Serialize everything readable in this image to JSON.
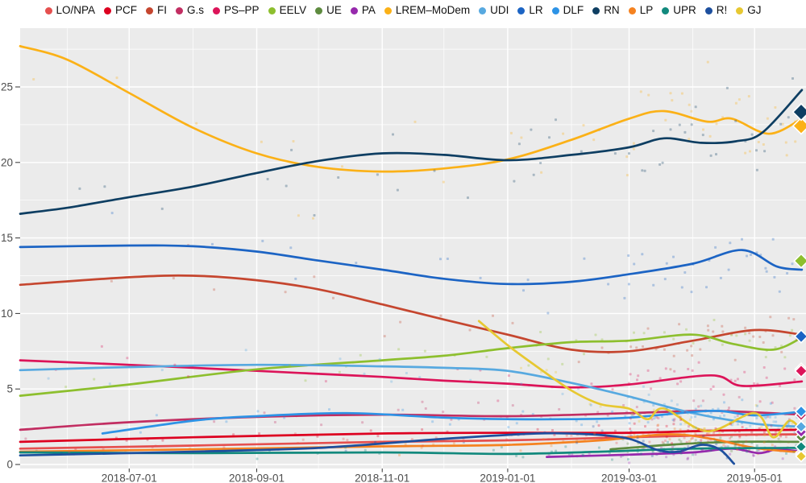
{
  "legend": {
    "items": [
      {
        "label": "LO/NPA",
        "color": "#e5504f"
      },
      {
        "label": "PCF",
        "color": "#dd0020"
      },
      {
        "label": "FI",
        "color": "#c5462f"
      },
      {
        "label": "G.s",
        "color": "#c22e62"
      },
      {
        "label": "PS–PP",
        "color": "#dc1459"
      },
      {
        "label": "EELV",
        "color": "#8dbf2e"
      },
      {
        "label": "UE",
        "color": "#5e8b3f"
      },
      {
        "label": "PA",
        "color": "#9629ac"
      },
      {
        "label": "LREM–MoDem",
        "color": "#fbb117"
      },
      {
        "label": "UDI",
        "color": "#57a9e0"
      },
      {
        "label": "LR",
        "color": "#1c64c4"
      },
      {
        "label": "DLF",
        "color": "#2d93e6"
      },
      {
        "label": "RN",
        "color": "#0e3e62"
      },
      {
        "label": "LP",
        "color": "#f58220"
      },
      {
        "label": "UPR",
        "color": "#12897d"
      },
      {
        "label": "R!",
        "color": "#1d4f9e"
      },
      {
        "label": "GJ",
        "color": "#e7c832"
      }
    ]
  },
  "chart_data": {
    "type": "line",
    "title": "",
    "description_of_marks": "smoothed polling trend lines with translucent poll scatter points; diamonds at right edge mark final values",
    "x_axis": {
      "domain": [
        "2018-05-09",
        "2019-05-26"
      ],
      "tick_labels": [
        "2018-07-01",
        "2018-09-01",
        "2018-11-01",
        "2019-01-01",
        "2019-03-01",
        "2019-05-01"
      ],
      "minor_ticks": [
        "2018-06-01",
        "2018-08-01",
        "2018-10-01",
        "2018-12-01",
        "2019-02-01",
        "2019-04-01"
      ]
    },
    "y_axis": {
      "ticks": [
        0,
        5,
        10,
        15,
        20,
        25
      ],
      "minor_ticks": [
        2.5,
        7.5,
        12.5,
        17.5,
        22.5,
        27.5
      ],
      "lim": [
        0,
        28.9
      ],
      "unit": "%"
    },
    "plot": {
      "bg": "#ebebeb",
      "grid_color": "#ffffff",
      "axis_text_color": "#4d4d4d",
      "tick_color": "#333333"
    },
    "series": [
      {
        "name": "LO/NPA",
        "color": "#e5504f",
        "result": 0.78,
        "points": [
          [
            "2018-05-09",
            1.05
          ],
          [
            "2018-08-01",
            1.25
          ],
          [
            "2018-11-01",
            1.5
          ],
          [
            "2019-01-01",
            1.6
          ],
          [
            "2019-03-01",
            1.8
          ],
          [
            "2019-04-15",
            1.95
          ],
          [
            "2019-05-24",
            2.0
          ]
        ]
      },
      {
        "name": "PCF",
        "color": "#dd0020",
        "result": 2.49,
        "points": [
          [
            "2018-05-09",
            1.5
          ],
          [
            "2018-08-01",
            1.8
          ],
          [
            "2018-11-01",
            2.05
          ],
          [
            "2019-01-01",
            2.1
          ],
          [
            "2019-03-01",
            2.1
          ],
          [
            "2019-04-15",
            2.25
          ],
          [
            "2019-05-24",
            2.3
          ]
        ]
      },
      {
        "name": "FI",
        "color": "#c5462f",
        "result": 6.31,
        "points": [
          [
            "2018-05-09",
            11.9
          ],
          [
            "2018-07-01",
            12.4
          ],
          [
            "2018-08-01",
            12.5
          ],
          [
            "2018-09-01",
            12.2
          ],
          [
            "2018-10-01",
            11.6
          ],
          [
            "2018-11-01",
            10.6
          ],
          [
            "2018-12-01",
            9.6
          ],
          [
            "2019-01-01",
            8.6
          ],
          [
            "2019-02-01",
            7.6
          ],
          [
            "2019-03-01",
            7.5
          ],
          [
            "2019-04-01",
            8.2
          ],
          [
            "2019-05-01",
            8.9
          ],
          [
            "2019-05-24",
            8.6
          ]
        ]
      },
      {
        "name": "G.s",
        "color": "#c22e62",
        "result": 3.27,
        "points": [
          [
            "2018-05-09",
            2.3
          ],
          [
            "2018-07-01",
            2.8
          ],
          [
            "2018-09-01",
            3.15
          ],
          [
            "2018-11-01",
            3.3
          ],
          [
            "2019-01-01",
            3.2
          ],
          [
            "2019-03-01",
            3.4
          ],
          [
            "2019-04-10",
            3.55
          ],
          [
            "2019-05-24",
            3.3
          ]
        ]
      },
      {
        "name": "PS–PP",
        "color": "#dc1459",
        "result": 6.19,
        "points": [
          [
            "2018-05-09",
            6.9
          ],
          [
            "2018-07-01",
            6.6
          ],
          [
            "2018-09-01",
            6.2
          ],
          [
            "2018-10-01",
            6.0
          ],
          [
            "2018-11-01",
            5.8
          ],
          [
            "2018-12-01",
            5.55
          ],
          [
            "2019-01-01",
            5.35
          ],
          [
            "2019-02-01",
            5.1
          ],
          [
            "2019-03-01",
            5.3
          ],
          [
            "2019-04-10",
            5.9
          ],
          [
            "2019-04-25",
            5.2
          ],
          [
            "2019-05-24",
            5.5
          ]
        ]
      },
      {
        "name": "EELV",
        "color": "#8dbf2e",
        "result": 13.48,
        "points": [
          [
            "2018-05-09",
            4.55
          ],
          [
            "2018-07-01",
            5.3
          ],
          [
            "2018-09-01",
            6.3
          ],
          [
            "2018-11-01",
            6.9
          ],
          [
            "2018-12-01",
            7.2
          ],
          [
            "2019-01-01",
            7.7
          ],
          [
            "2019-02-01",
            8.1
          ],
          [
            "2019-03-01",
            8.2
          ],
          [
            "2019-04-01",
            8.6
          ],
          [
            "2019-04-20",
            8.0
          ],
          [
            "2019-05-10",
            7.6
          ],
          [
            "2019-05-24",
            8.4
          ]
        ]
      },
      {
        "name": "UE",
        "color": "#5e8b3f",
        "result": 1.82,
        "points": [
          [
            "2019-02-20",
            1.0
          ],
          [
            "2019-03-20",
            1.3
          ],
          [
            "2019-04-20",
            1.5
          ],
          [
            "2019-05-24",
            1.5
          ]
        ]
      },
      {
        "name": "PA",
        "color": "#9629ac",
        "result": 2.16,
        "points": [
          [
            "2019-01-20",
            0.5
          ],
          [
            "2019-03-01",
            0.65
          ],
          [
            "2019-04-01",
            0.8
          ],
          [
            "2019-04-20",
            1.05
          ],
          [
            "2019-05-03",
            0.75
          ],
          [
            "2019-05-12",
            1.0
          ],
          [
            "2019-05-24",
            0.85
          ]
        ]
      },
      {
        "name": "LREM–MoDem",
        "color": "#fbb117",
        "result": 22.42,
        "points": [
          [
            "2018-05-09",
            27.7
          ],
          [
            "2018-06-01",
            26.8
          ],
          [
            "2018-07-01",
            24.6
          ],
          [
            "2018-08-01",
            22.3
          ],
          [
            "2018-09-01",
            20.6
          ],
          [
            "2018-10-01",
            19.7
          ],
          [
            "2018-11-01",
            19.4
          ],
          [
            "2018-12-01",
            19.6
          ],
          [
            "2019-01-01",
            20.2
          ],
          [
            "2019-02-01",
            21.5
          ],
          [
            "2019-03-01",
            22.9
          ],
          [
            "2019-03-18",
            23.4
          ],
          [
            "2019-04-08",
            22.7
          ],
          [
            "2019-04-20",
            22.9
          ],
          [
            "2019-05-08",
            21.9
          ],
          [
            "2019-05-24",
            22.9
          ]
        ]
      },
      {
        "name": "UDI",
        "color": "#57a9e0",
        "result": 2.5,
        "points": [
          [
            "2018-05-09",
            6.25
          ],
          [
            "2018-07-01",
            6.45
          ],
          [
            "2018-09-01",
            6.6
          ],
          [
            "2018-11-01",
            6.5
          ],
          [
            "2018-12-01",
            6.4
          ],
          [
            "2019-01-01",
            6.2
          ],
          [
            "2019-02-01",
            5.4
          ],
          [
            "2019-03-01",
            4.5
          ],
          [
            "2019-04-01",
            3.4
          ],
          [
            "2019-05-01",
            2.7
          ],
          [
            "2019-05-24",
            2.5
          ]
        ]
      },
      {
        "name": "LR",
        "color": "#1c64c4",
        "result": 8.48,
        "points": [
          [
            "2018-05-09",
            14.4
          ],
          [
            "2018-07-01",
            14.5
          ],
          [
            "2018-08-01",
            14.45
          ],
          [
            "2018-09-01",
            14.1
          ],
          [
            "2018-10-01",
            13.5
          ],
          [
            "2018-11-01",
            12.9
          ],
          [
            "2018-12-01",
            12.3
          ],
          [
            "2019-01-01",
            11.95
          ],
          [
            "2019-02-01",
            12.1
          ],
          [
            "2019-03-01",
            12.6
          ],
          [
            "2019-04-01",
            13.3
          ],
          [
            "2019-04-25",
            14.2
          ],
          [
            "2019-05-12",
            13.1
          ],
          [
            "2019-05-24",
            12.9
          ]
        ]
      },
      {
        "name": "DLF",
        "color": "#2d93e6",
        "result": 3.51,
        "points": [
          [
            "2018-06-18",
            2.05
          ],
          [
            "2018-08-01",
            2.9
          ],
          [
            "2018-09-01",
            3.2
          ],
          [
            "2018-10-15",
            3.4
          ],
          [
            "2018-12-01",
            3.1
          ],
          [
            "2019-01-01",
            3.0
          ],
          [
            "2019-02-01",
            3.0
          ],
          [
            "2019-03-01",
            3.1
          ],
          [
            "2019-04-10",
            3.55
          ],
          [
            "2019-05-01",
            3.25
          ],
          [
            "2019-05-24",
            3.5
          ]
        ]
      },
      {
        "name": "RN",
        "color": "#0e3e62",
        "result": 23.34,
        "points": [
          [
            "2018-05-09",
            16.6
          ],
          [
            "2018-06-01",
            17.0
          ],
          [
            "2018-07-01",
            17.7
          ],
          [
            "2018-08-01",
            18.4
          ],
          [
            "2018-09-01",
            19.3
          ],
          [
            "2018-10-01",
            20.1
          ],
          [
            "2018-11-01",
            20.6
          ],
          [
            "2018-12-01",
            20.5
          ],
          [
            "2019-01-01",
            20.15
          ],
          [
            "2019-02-01",
            20.5
          ],
          [
            "2019-03-01",
            21.0
          ],
          [
            "2019-03-18",
            21.6
          ],
          [
            "2019-04-05",
            21.3
          ],
          [
            "2019-04-22",
            21.4
          ],
          [
            "2019-05-05",
            22.0
          ],
          [
            "2019-05-24",
            24.8
          ]
        ]
      },
      {
        "name": "LP",
        "color": "#f58220",
        "result": 0.65,
        "points": [
          [
            "2018-05-09",
            0.85
          ],
          [
            "2018-08-01",
            1.0
          ],
          [
            "2018-11-01",
            1.2
          ],
          [
            "2019-01-01",
            1.3
          ],
          [
            "2019-02-15",
            1.6
          ],
          [
            "2019-03-20",
            2.0
          ],
          [
            "2019-04-10",
            1.7
          ],
          [
            "2019-05-01",
            1.1
          ],
          [
            "2019-05-24",
            0.8
          ]
        ]
      },
      {
        "name": "UPR",
        "color": "#12897d",
        "result": 1.17,
        "points": [
          [
            "2018-05-09",
            0.8
          ],
          [
            "2018-08-01",
            0.75
          ],
          [
            "2018-11-01",
            0.8
          ],
          [
            "2019-01-01",
            0.7
          ],
          [
            "2019-02-15",
            0.85
          ],
          [
            "2019-04-01",
            1.05
          ],
          [
            "2019-05-24",
            1.1
          ]
        ]
      },
      {
        "name": "R!",
        "color": "#1d4f9e",
        "result": null,
        "points": [
          [
            "2018-05-09",
            0.6
          ],
          [
            "2018-08-01",
            0.85
          ],
          [
            "2018-10-01",
            1.1
          ],
          [
            "2018-12-01",
            1.7
          ],
          [
            "2019-01-15",
            2.05
          ],
          [
            "2019-02-10",
            2.0
          ],
          [
            "2019-03-01",
            1.7
          ],
          [
            "2019-03-15",
            0.95
          ],
          [
            "2019-03-25",
            0.85
          ],
          [
            "2019-04-05",
            1.3
          ],
          [
            "2019-04-14",
            1.0
          ],
          [
            "2019-04-21",
            0.05
          ]
        ]
      },
      {
        "name": "GJ",
        "color": "#e7c832",
        "result": 0.54,
        "points": [
          [
            "2018-12-18",
            9.5
          ],
          [
            "2019-01-01",
            7.9
          ],
          [
            "2019-01-15",
            6.5
          ],
          [
            "2019-02-01",
            4.9
          ],
          [
            "2019-02-15",
            4.0
          ],
          [
            "2019-03-01",
            3.7
          ],
          [
            "2019-03-10",
            3.0
          ],
          [
            "2019-03-18",
            3.7
          ],
          [
            "2019-04-08",
            2.2
          ],
          [
            "2019-05-01",
            3.4
          ],
          [
            "2019-05-10",
            1.8
          ],
          [
            "2019-05-18",
            2.9
          ],
          [
            "2019-05-24",
            2.2
          ]
        ]
      }
    ]
  }
}
